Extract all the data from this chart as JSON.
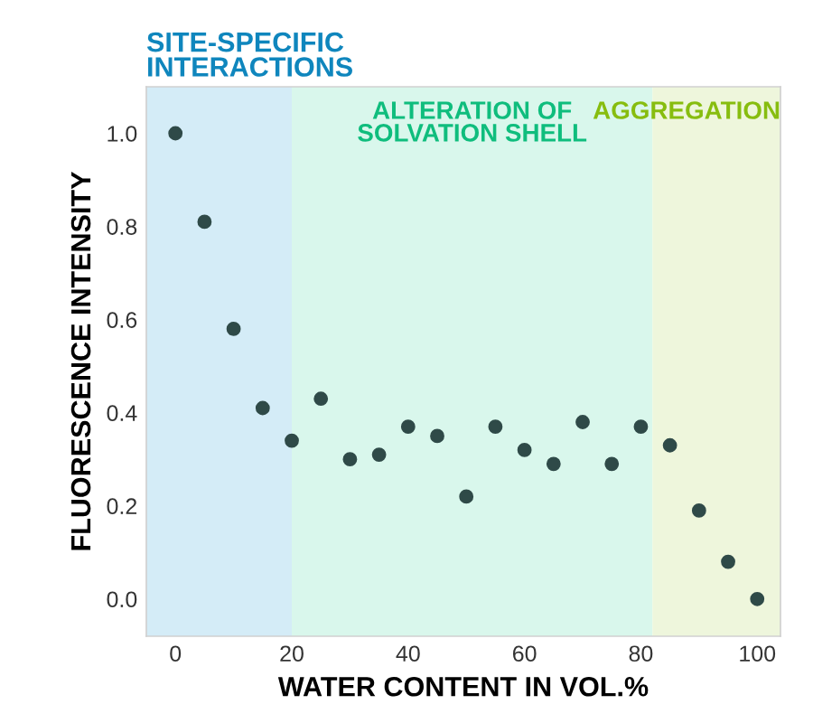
{
  "chart_data": {
    "type": "scatter",
    "xlabel": "WATER CONTENT IN VOL.%",
    "ylabel": "FLUORESCENCE INTENSITY",
    "x": [
      0,
      5,
      10,
      15,
      20,
      25,
      30,
      35,
      40,
      45,
      50,
      55,
      60,
      65,
      70,
      75,
      80,
      85,
      90,
      95,
      100
    ],
    "series": [
      {
        "color": "#2f4a48",
        "values": [
          1.0,
          0.81,
          0.58,
          0.41,
          0.34,
          0.43,
          0.3,
          0.31,
          0.37,
          0.35,
          0.22,
          0.37,
          0.32,
          0.29,
          0.38,
          0.29,
          0.37,
          0.33,
          0.19,
          0.08,
          0.0
        ]
      }
    ],
    "marker": "circle",
    "xlim": [
      -5,
      104
    ],
    "ylim": [
      -0.08,
      1.1
    ],
    "xticks": [
      0,
      20,
      40,
      60,
      80,
      100
    ],
    "yticks": [
      {
        "value": 0,
        "label": "0.0"
      },
      {
        "value": 0.2,
        "label": "0.2"
      },
      {
        "value": 0.4,
        "label": "0.4"
      },
      {
        "value": 0.6,
        "label": "0.6"
      },
      {
        "value": 0.8,
        "label": "0.8"
      },
      {
        "value": 1.0,
        "label": "1.0"
      }
    ],
    "bands": [
      {
        "axis": "x",
        "from": -5,
        "to": 20,
        "label": "SITE-SPECIFIC\nINTERACTIONS",
        "color": "#d4ecf7"
      },
      {
        "axis": "x",
        "from": 20,
        "to": 82,
        "label": "ALTERATION OF\nSOLVATION SHELL",
        "color": "#d9f7ec"
      },
      {
        "axis": "x",
        "from": 82,
        "to": 104,
        "label": "AGGREGATION",
        "color": "#eef6dc"
      }
    ],
    "grid": false,
    "legend": false
  }
}
